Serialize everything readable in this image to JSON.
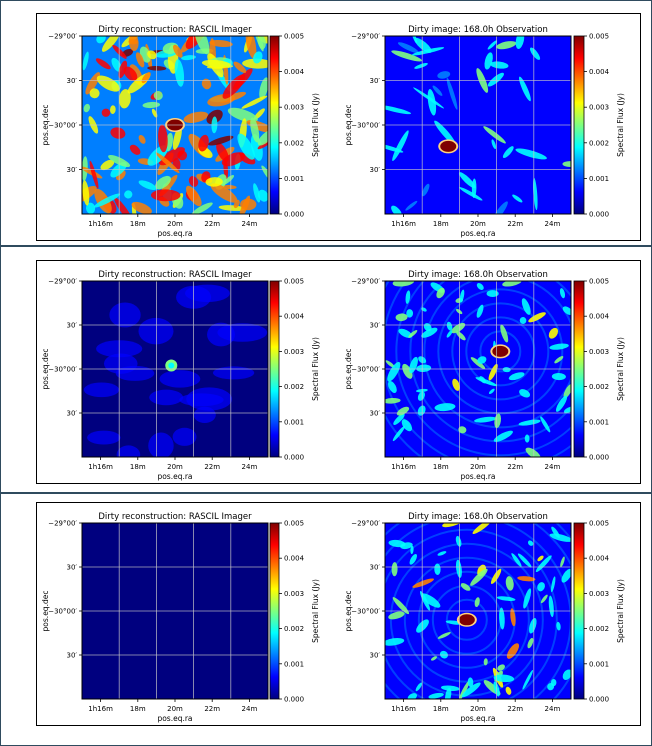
{
  "colormap": {
    "name": "jet",
    "stops": [
      "#00007f",
      "#0000ff",
      "#007fff",
      "#00ffff",
      "#7fff7f",
      "#ffff00",
      "#ff7f00",
      "#ff0000",
      "#7f0000"
    ]
  },
  "chart_data": [
    {
      "row": 1,
      "type": "heatmap",
      "left": {
        "title": "Dirty reconstruction: RASCIL Imager",
        "pattern": "dense",
        "source": [
          0.5,
          0.5
        ],
        "peak": 0.005,
        "background": 0.0015
      },
      "right": {
        "title": "Dirty image: 168.0h Observation",
        "pattern": "sparse",
        "source": [
          0.34,
          0.62
        ],
        "peak": 0.005,
        "background": 0.0004
      },
      "xlabel": "pos.eq.ra",
      "ylabel": "pos.eq.dec",
      "xticks": [
        "1h16m",
        "18m",
        "20m",
        "22m",
        "24m"
      ],
      "yticks": [
        "−29°00′",
        "30′",
        "−30°00′",
        "30′"
      ],
      "colorbar": {
        "label": "Spectral Flux (Jy)",
        "ticks": [
          "0.005",
          "0.004",
          "0.003",
          "0.002",
          "0.001",
          "0.000"
        ],
        "range": [
          0,
          0.005
        ]
      }
    },
    {
      "row": 2,
      "type": "heatmap",
      "left": {
        "title": "Dirty reconstruction: RASCIL Imager",
        "pattern": "faint",
        "source": [
          0.48,
          0.48
        ],
        "peak": 0.0019,
        "background": 0.0003
      },
      "right": {
        "title": "Dirty image: 168.0h Observation",
        "pattern": "rings",
        "source": [
          0.62,
          0.4
        ],
        "peak": 0.005,
        "background": 0.0008
      },
      "xlabel": "pos.eq.ra",
      "ylabel": "pos.eq.dec",
      "xticks": [
        "1h16m",
        "18m",
        "20m",
        "22m",
        "24m"
      ],
      "yticks": [
        "−29°00′",
        "30′",
        "−30°00′",
        "30′"
      ],
      "colorbar": {
        "label": "Spectral Flux (Jy)",
        "ticks": [
          "0.005",
          "0.004",
          "0.003",
          "0.002",
          "0.001",
          "0.000"
        ],
        "range": [
          0,
          0.005
        ]
      }
    },
    {
      "row": 3,
      "type": "heatmap",
      "left": {
        "title": "Dirty reconstruction: RASCIL Imager",
        "pattern": "empty",
        "source": null,
        "peak": 0.0005,
        "background": 0.0002
      },
      "right": {
        "title": "Dirty image: 168.0h Observation",
        "pattern": "rings",
        "source": [
          0.44,
          0.55
        ],
        "peak": 0.005,
        "background": 0.0008
      },
      "xlabel": "pos.eq.ra",
      "ylabel": "pos.eq.dec",
      "xticks": [
        "1h16m",
        "18m",
        "20m",
        "22m",
        "24m"
      ],
      "yticks": [
        "−29°00′",
        "30′",
        "−30°00′",
        "30′"
      ],
      "colorbar": {
        "label": "Spectral Flux (Jy)",
        "ticks": [
          "0.005",
          "0.004",
          "0.003",
          "0.002",
          "0.001",
          "0.000"
        ],
        "range": [
          0,
          0.005
        ]
      }
    }
  ]
}
